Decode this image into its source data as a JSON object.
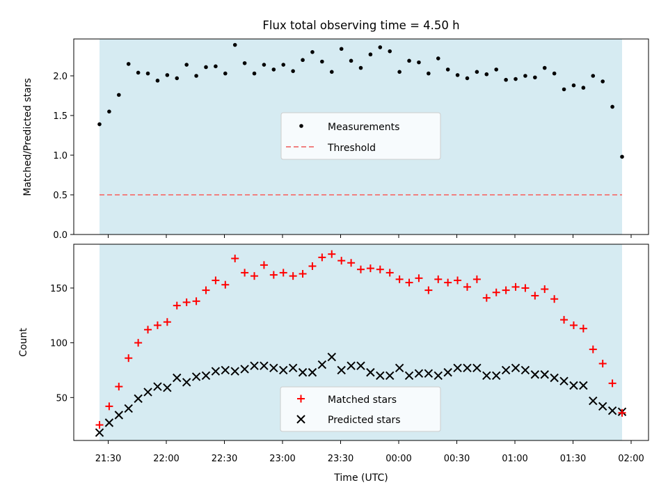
{
  "chart_data": [
    {
      "type": "scatter",
      "title": "Flux total observing time = 4.50 h",
      "xlabel": "",
      "ylabel": "Matched/Predicted stars",
      "ylim": [
        0,
        2.5
      ],
      "y_ticks": [
        "0.0",
        "0.5",
        "1.0",
        "1.5",
        "2.0"
      ],
      "shaded_region": {
        "color": "#add8e6"
      },
      "legend_placement": "center",
      "series": [
        {
          "name": "Measurements",
          "marker": "dot",
          "color": "#000000",
          "values": [
            1.39,
            1.55,
            1.76,
            2.15,
            2.04,
            2.03,
            1.94,
            2.01,
            1.97,
            2.14,
            2.0,
            2.11,
            2.12,
            2.03,
            2.39,
            2.16,
            2.03,
            2.14,
            2.08,
            2.14,
            2.06,
            2.2,
            2.3,
            2.18,
            2.05,
            2.34,
            2.19,
            2.1,
            2.27,
            2.36,
            2.31,
            2.05,
            2.19,
            2.17,
            2.03,
            2.22,
            2.08,
            2.01,
            1.97,
            2.05,
            2.02,
            2.08,
            1.95,
            1.96,
            2.0,
            1.98,
            2.1,
            2.03,
            1.83,
            1.88,
            1.85,
            2.0,
            1.93,
            1.61,
            0.98
          ]
        }
      ],
      "threshold": {
        "name": "Threshold",
        "value": 0.5,
        "color": "#f08080"
      }
    },
    {
      "type": "scatter",
      "title": "",
      "xlabel": "Time (UTC)",
      "ylabel": "Count",
      "ylim": [
        10,
        190
      ],
      "y_ticks": [
        "50",
        "100",
        "150"
      ],
      "x_ticks": [
        "21:30",
        "22:00",
        "22:30",
        "23:00",
        "23:30",
        "00:00",
        "00:30",
        "01:00",
        "01:30",
        "02:00"
      ],
      "shaded_region": {
        "color": "#add8e6"
      },
      "legend_placement": "lower center",
      "series": [
        {
          "name": "Matched stars",
          "marker": "plus",
          "color": "#ff0000",
          "values": [
            25,
            42,
            60,
            86,
            100,
            112,
            116,
            119,
            134,
            137,
            138,
            148,
            157,
            153,
            177,
            164,
            161,
            171,
            162,
            164,
            161,
            163,
            170,
            178,
            181,
            175,
            173,
            167,
            168,
            167,
            164,
            158,
            155,
            159,
            148,
            158,
            155,
            157,
            151,
            158,
            141,
            146,
            148,
            151,
            150,
            143,
            149,
            140,
            121,
            116,
            113,
            94,
            81,
            63,
            36
          ]
        },
        {
          "name": "Predicted stars",
          "marker": "x",
          "color": "#000000",
          "values": [
            18,
            27,
            34,
            40,
            49,
            55,
            60,
            59,
            68,
            64,
            69,
            70,
            74,
            75,
            74,
            76,
            79,
            79,
            77,
            75,
            77,
            73,
            73,
            80,
            87,
            75,
            79,
            79,
            73,
            70,
            70,
            77,
            70,
            72,
            72,
            70,
            73,
            77,
            77,
            77,
            70,
            70,
            75,
            77,
            75,
            71,
            71,
            68,
            65,
            61,
            61,
            47,
            42,
            38,
            37
          ]
        }
      ]
    }
  ]
}
